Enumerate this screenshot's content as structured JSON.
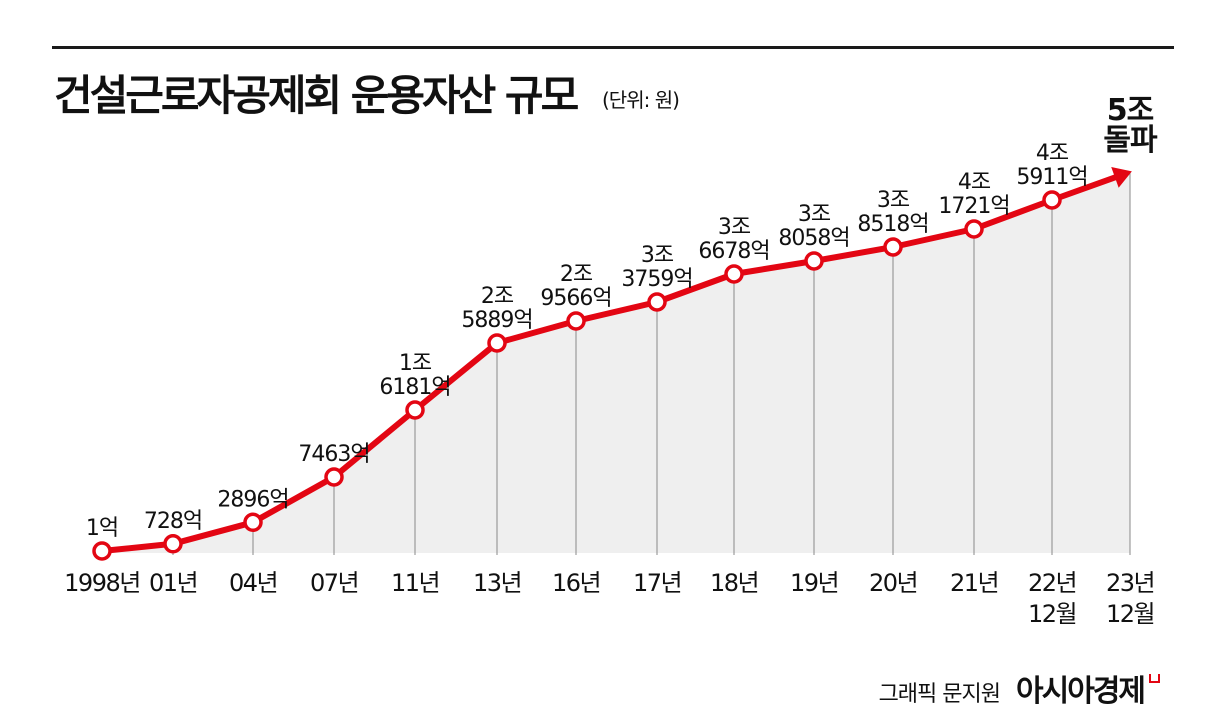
{
  "header": {
    "title": "건설근로자공제회 운용자산 규모",
    "unit": "(단위: 원)"
  },
  "colors": {
    "line": "#e30613",
    "area": "#efefef",
    "text": "#111111"
  },
  "chart_data": {
    "type": "area",
    "title": "건설근로자공제회 운용자산 규모",
    "unit": "원",
    "categories": [
      "1998년",
      "01년",
      "04년",
      "07년",
      "11년",
      "13년",
      "16년",
      "17년",
      "18년",
      "19년",
      "20년",
      "21년",
      "22년 12월",
      "23년 12월"
    ],
    "tick_labels": [
      [
        "1998년"
      ],
      [
        "01년"
      ],
      [
        "04년"
      ],
      [
        "07년"
      ],
      [
        "11년"
      ],
      [
        "13년"
      ],
      [
        "16년"
      ],
      [
        "17년"
      ],
      [
        "18년"
      ],
      [
        "19년"
      ],
      [
        "20년"
      ],
      [
        "21년"
      ],
      [
        "22년",
        "12월"
      ],
      [
        "23년",
        "12월"
      ]
    ],
    "values_억": [
      1,
      728,
      2896,
      7463,
      16181,
      25889,
      29566,
      33759,
      36678,
      38058,
      38518,
      41721,
      45911,
      50000
    ],
    "data_labels": [
      [
        "1억"
      ],
      [
        "728억"
      ],
      [
        "2896억"
      ],
      [
        "7463억"
      ],
      [
        "1조",
        "6181억"
      ],
      [
        "2조",
        "5889억"
      ],
      [
        "2조",
        "9566억"
      ],
      [
        "3조",
        "3759억"
      ],
      [
        "3조",
        "6678억"
      ],
      [
        "3조",
        "8058억"
      ],
      [
        "3조",
        "8518억"
      ],
      [
        "4조",
        "1721억"
      ],
      [
        "4조",
        "5911억"
      ],
      [
        "5조",
        "돌파"
      ]
    ],
    "legend": "none",
    "grid": false
  },
  "credit": {
    "graphic": "그래픽 문지원",
    "brand": "아시아경제"
  }
}
